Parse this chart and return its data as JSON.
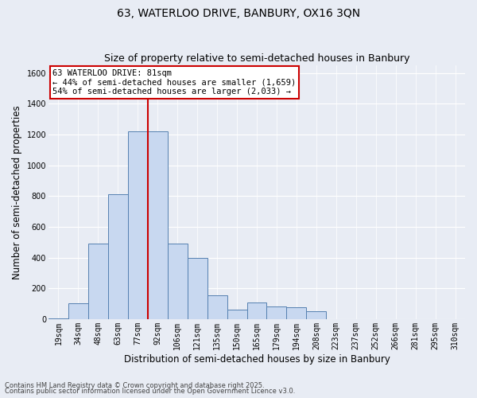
{
  "title_line1": "63, WATERLOO DRIVE, BANBURY, OX16 3QN",
  "title_line2": "Size of property relative to semi-detached houses in Banbury",
  "xlabel": "Distribution of semi-detached houses by size in Banbury",
  "ylabel": "Number of semi-detached properties",
  "categories": [
    "19sqm",
    "34sqm",
    "48sqm",
    "63sqm",
    "77sqm",
    "92sqm",
    "106sqm",
    "121sqm",
    "135sqm",
    "150sqm",
    "165sqm",
    "179sqm",
    "194sqm",
    "208sqm",
    "223sqm",
    "237sqm",
    "252sqm",
    "266sqm",
    "281sqm",
    "295sqm",
    "310sqm"
  ],
  "values": [
    5,
    105,
    490,
    810,
    1220,
    1220,
    490,
    400,
    155,
    60,
    110,
    80,
    75,
    50,
    0,
    0,
    0,
    0,
    0,
    0,
    0
  ],
  "bar_color": "#c8d8f0",
  "bar_edge_color": "#5580b0",
  "vline_x": 4.5,
  "annotation_title": "63 WATERLOO DRIVE: 81sqm",
  "annotation_line1": "← 44% of semi-detached houses are smaller (1,659)",
  "annotation_line2": "54% of semi-detached houses are larger (2,033) →",
  "annotation_box_color": "#ffffff",
  "annotation_box_edge": "#cc0000",
  "vline_color": "#cc0000",
  "ylim": [
    0,
    1650
  ],
  "yticks": [
    0,
    200,
    400,
    600,
    800,
    1000,
    1200,
    1400,
    1600
  ],
  "footer_line1": "Contains HM Land Registry data © Crown copyright and database right 2025.",
  "footer_line2": "Contains public sector information licensed under the Open Government Licence v3.0.",
  "background_color": "#e8ecf4",
  "plot_background_color": "#e8ecf4",
  "grid_color": "#ffffff",
  "title_fontsize": 10,
  "subtitle_fontsize": 9,
  "tick_fontsize": 7,
  "label_fontsize": 8.5,
  "annotation_fontsize": 7.5,
  "footer_fontsize": 6
}
